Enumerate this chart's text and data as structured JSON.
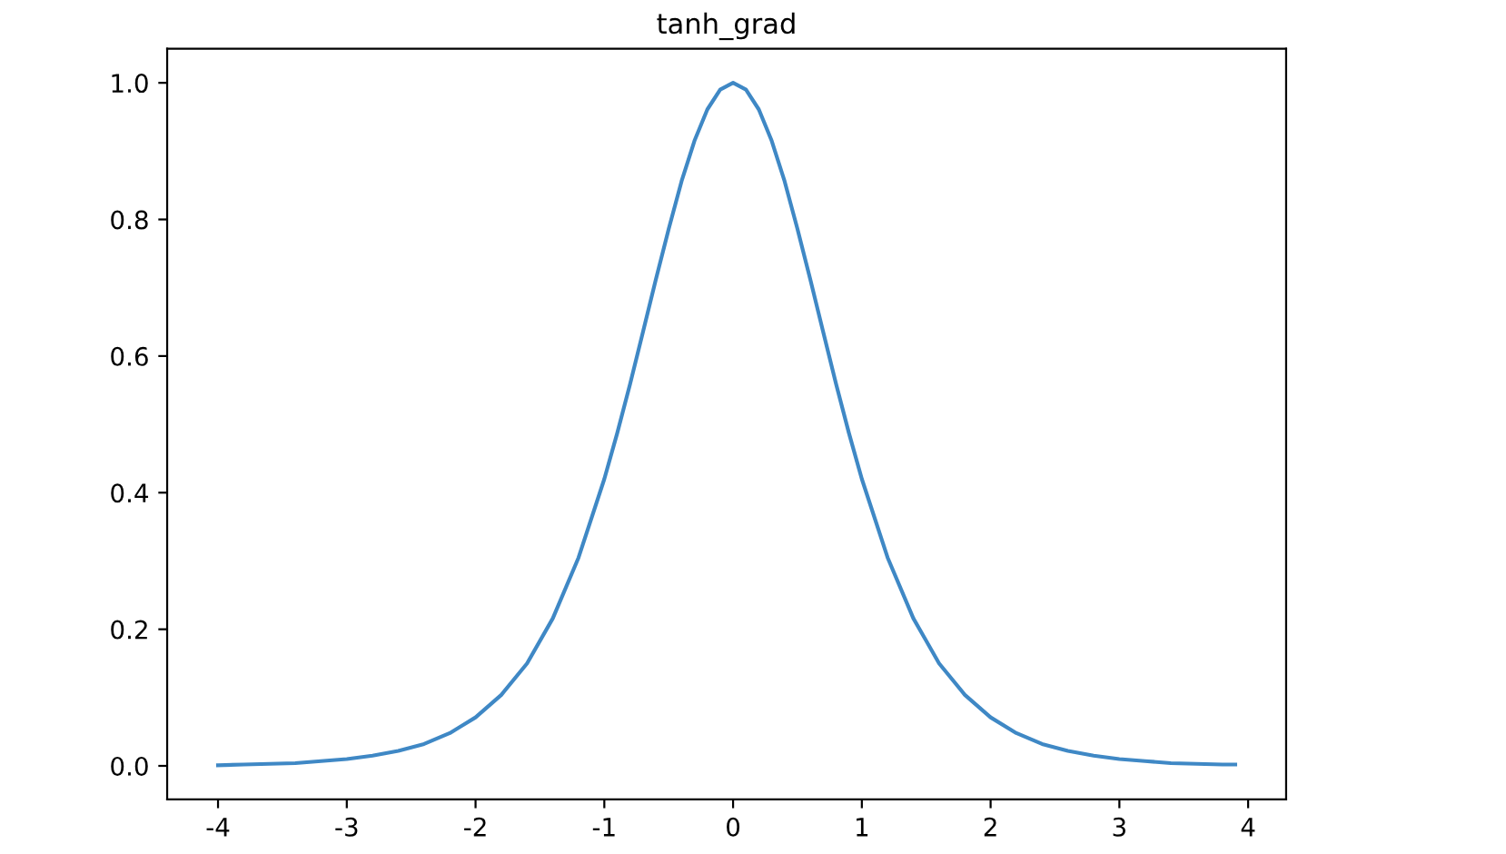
{
  "chart_data": {
    "type": "line",
    "title": "tanh_grad",
    "x": [
      -4.0,
      -3.8,
      -3.6,
      -3.4,
      -3.2,
      -3.0,
      -2.8,
      -2.6,
      -2.4,
      -2.2,
      -2.0,
      -1.8,
      -1.6,
      -1.4,
      -1.2,
      -1.0,
      -0.9,
      -0.8,
      -0.7,
      -0.6,
      -0.5,
      -0.4,
      -0.3,
      -0.2,
      -0.1,
      0.0,
      0.1,
      0.2,
      0.3,
      0.4,
      0.5,
      0.6,
      0.7,
      0.8,
      0.9,
      1.0,
      1.2,
      1.4,
      1.6,
      1.8,
      2.0,
      2.2,
      2.4,
      2.6,
      2.8,
      3.0,
      3.2,
      3.4,
      3.6,
      3.8,
      3.9
    ],
    "series": [
      {
        "color": "#3f88c5",
        "values": [
          0.001,
          0.002,
          0.003,
          0.004,
          0.007,
          0.01,
          0.015,
          0.022,
          0.032,
          0.048,
          0.071,
          0.104,
          0.15,
          0.216,
          0.305,
          0.42,
          0.487,
          0.559,
          0.635,
          0.712,
          0.786,
          0.856,
          0.915,
          0.961,
          0.99,
          1.0,
          0.99,
          0.961,
          0.915,
          0.856,
          0.786,
          0.712,
          0.635,
          0.559,
          0.487,
          0.42,
          0.305,
          0.216,
          0.15,
          0.104,
          0.071,
          0.048,
          0.032,
          0.022,
          0.015,
          0.01,
          0.007,
          0.004,
          0.003,
          0.002,
          0.002
        ]
      }
    ],
    "xlim": [
      -4.395,
      4.295
    ],
    "ylim": [
      -0.049,
      1.05
    ],
    "xticks": [
      -4,
      -3,
      -2,
      -1,
      0,
      1,
      2,
      3,
      4
    ],
    "yticks": [
      {
        "value": 0,
        "label": "0.0"
      },
      {
        "value": 0.2,
        "label": "0.2"
      },
      {
        "value": 0.4,
        "label": "0.4"
      },
      {
        "value": 0.6,
        "label": "0.6"
      },
      {
        "value": 0.8,
        "label": "0.8"
      },
      {
        "value": 1.0,
        "label": "1.0"
      }
    ],
    "grid": false,
    "legend": false,
    "line_style": "solid",
    "marker": "none"
  }
}
